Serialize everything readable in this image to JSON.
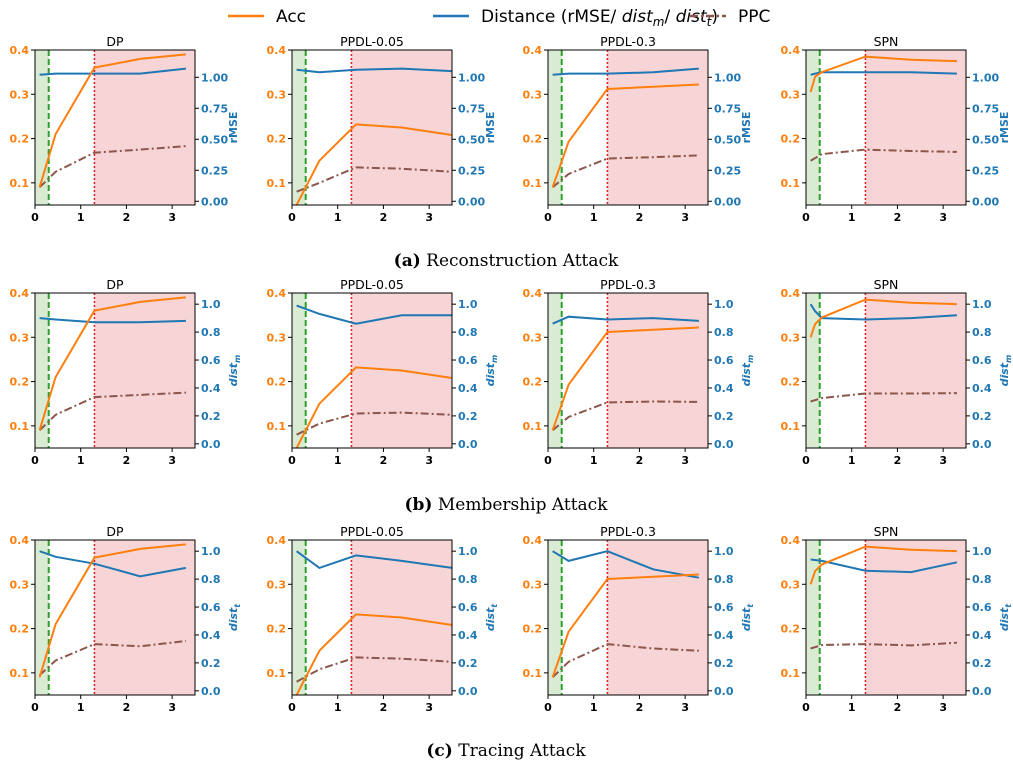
{
  "legend": [
    {
      "label": "Acc",
      "color": "#ff7f0e",
      "dash": "solid"
    },
    {
      "label_parts": [
        "Distance (rMSE/ ",
        "dist",
        "m",
        "/ ",
        "dist",
        "t",
        ")"
      ],
      "color": "#1f77b4",
      "dash": "solid"
    },
    {
      "label": "PPC",
      "color": "#8c564b",
      "dash": "dashdot"
    }
  ],
  "colors": {
    "acc": "#ff7f0e",
    "distance": "#1f77b4",
    "ppc": "#8c564b",
    "green_region": "#d9ecd3",
    "red_region": "#f7d4d6",
    "green_line": "#2ca02c",
    "red_line": "#d62728"
  },
  "chart_data": [
    {
      "row_caption": {
        "label": "(a)",
        "text": "Reconstruction Attack"
      },
      "right_ylabel": {
        "base": "rMSE",
        "sub": ""
      },
      "right_ticks": [
        "0.00",
        "0.25",
        "0.50",
        "0.75",
        "1.00"
      ],
      "right_ylim": [
        -0.03,
        1.22
      ],
      "panels": [
        {
          "type": "line",
          "title": "DP",
          "xlim": [
            0,
            3.5
          ],
          "ylim": [
            0.05,
            0.4
          ],
          "region_bounds": [
            0.3,
            1.3
          ],
          "acc": {
            "x": [
              0.1,
              0.45,
              1.3,
              2.3,
              3.3
            ],
            "y": [
              0.09,
              0.21,
              0.36,
              0.38,
              0.39
            ]
          },
          "ppc": {
            "x": [
              0.1,
              0.45,
              1.3,
              2.3,
              3.3
            ],
            "y": [
              0.09,
              0.125,
              0.168,
              0.175,
              0.183
            ]
          },
          "distance": {
            "x": [
              0.1,
              0.45,
              1.3,
              2.3,
              3.3
            ],
            "y": [
              1.02,
              1.03,
              1.03,
              1.03,
              1.07
            ]
          }
        },
        {
          "type": "line",
          "title": "PPDL-0.05",
          "xlim": [
            0,
            3.5
          ],
          "ylim": [
            0.05,
            0.4
          ],
          "region_bounds": [
            0.3,
            1.3
          ],
          "acc": {
            "x": [
              0.1,
              0.6,
              1.4,
              2.4,
              3.5
            ],
            "y": [
              0.05,
              0.15,
              0.232,
              0.225,
              0.208
            ]
          },
          "ppc": {
            "x": [
              0.1,
              0.6,
              1.4,
              2.4,
              3.5
            ],
            "y": [
              0.08,
              0.1,
              0.135,
              0.132,
              0.125
            ]
          },
          "distance": {
            "x": [
              0.1,
              0.6,
              1.4,
              2.4,
              3.5
            ],
            "y": [
              1.06,
              1.04,
              1.06,
              1.07,
              1.05
            ]
          }
        },
        {
          "type": "line",
          "title": "PPDL-0.3",
          "xlim": [
            0,
            3.5
          ],
          "ylim": [
            0.05,
            0.4
          ],
          "region_bounds": [
            0.3,
            1.3
          ],
          "acc": {
            "x": [
              0.1,
              0.45,
              1.3,
              2.3,
              3.3
            ],
            "y": [
              0.09,
              0.193,
              0.312,
              0.317,
              0.322
            ]
          },
          "ppc": {
            "x": [
              0.1,
              0.45,
              1.3,
              2.3,
              3.3
            ],
            "y": [
              0.09,
              0.12,
              0.155,
              0.158,
              0.162
            ]
          },
          "distance": {
            "x": [
              0.1,
              0.45,
              1.3,
              2.3,
              3.3
            ],
            "y": [
              1.02,
              1.03,
              1.03,
              1.04,
              1.07
            ]
          }
        },
        {
          "type": "line",
          "title": "SPN",
          "xlim": [
            0,
            3.5
          ],
          "ylim": [
            0.05,
            0.4
          ],
          "region_bounds": [
            0.3,
            1.3
          ],
          "acc": {
            "x": [
              0.1,
              0.2,
              0.35,
              1.3,
              2.3,
              3.3
            ],
            "y": [
              0.305,
              0.34,
              0.35,
              0.385,
              0.378,
              0.375
            ]
          },
          "ppc": {
            "x": [
              0.1,
              0.35,
              1.3,
              2.3,
              3.3
            ],
            "y": [
              0.15,
              0.165,
              0.175,
              0.172,
              0.17
            ]
          },
          "distance": {
            "x": [
              0.1,
              0.2,
              0.35,
              1.3,
              2.3,
              3.3
            ],
            "y": [
              1.02,
              1.03,
              1.04,
              1.04,
              1.04,
              1.03
            ]
          }
        }
      ]
    },
    {
      "row_caption": {
        "label": "(b)",
        "text": "Membership Attack"
      },
      "right_ylabel": {
        "base": "dist",
        "sub": "m"
      },
      "right_ticks": [
        "0.0",
        "0.2",
        "0.4",
        "0.6",
        "0.8",
        "1.0"
      ],
      "right_ylim": [
        -0.03,
        1.08
      ],
      "panels": [
        {
          "type": "line",
          "title": "DP",
          "xlim": [
            0,
            3.5
          ],
          "ylim": [
            0.05,
            0.4
          ],
          "region_bounds": [
            0.3,
            1.3
          ],
          "acc": {
            "x": [
              0.1,
              0.45,
              1.3,
              2.3,
              3.3
            ],
            "y": [
              0.09,
              0.21,
              0.36,
              0.38,
              0.39
            ]
          },
          "ppc": {
            "x": [
              0.1,
              0.45,
              1.3,
              2.3,
              3.3
            ],
            "y": [
              0.09,
              0.125,
              0.165,
              0.17,
              0.175
            ]
          },
          "distance": {
            "x": [
              0.1,
              0.45,
              1.3,
              2.3,
              3.3
            ],
            "y": [
              0.9,
              0.89,
              0.87,
              0.87,
              0.88
            ]
          }
        },
        {
          "type": "line",
          "title": "PPDL-0.05",
          "xlim": [
            0,
            3.5
          ],
          "ylim": [
            0.05,
            0.4
          ],
          "region_bounds": [
            0.3,
            1.3
          ],
          "acc": {
            "x": [
              0.1,
              0.6,
              1.4,
              2.4,
              3.5
            ],
            "y": [
              0.05,
              0.15,
              0.232,
              0.225,
              0.208
            ]
          },
          "ppc": {
            "x": [
              0.1,
              0.6,
              1.4,
              2.4,
              3.5
            ],
            "y": [
              0.08,
              0.105,
              0.128,
              0.13,
              0.125
            ]
          },
          "distance": {
            "x": [
              0.1,
              0.6,
              1.4,
              2.4,
              3.5
            ],
            "y": [
              0.99,
              0.93,
              0.86,
              0.92,
              0.92
            ]
          }
        },
        {
          "type": "line",
          "title": "PPDL-0.3",
          "xlim": [
            0,
            3.5
          ],
          "ylim": [
            0.05,
            0.4
          ],
          "region_bounds": [
            0.3,
            1.3
          ],
          "acc": {
            "x": [
              0.1,
              0.45,
              1.3,
              2.3,
              3.3
            ],
            "y": [
              0.09,
              0.193,
              0.312,
              0.317,
              0.322
            ]
          },
          "ppc": {
            "x": [
              0.1,
              0.45,
              1.3,
              2.3,
              3.3
            ],
            "y": [
              0.09,
              0.12,
              0.153,
              0.155,
              0.154
            ]
          },
          "distance": {
            "x": [
              0.1,
              0.45,
              1.3,
              2.3,
              3.3
            ],
            "y": [
              0.86,
              0.91,
              0.89,
              0.9,
              0.88
            ]
          }
        },
        {
          "type": "line",
          "title": "SPN",
          "xlim": [
            0,
            3.5
          ],
          "ylim": [
            0.05,
            0.4
          ],
          "region_bounds": [
            0.3,
            1.3
          ],
          "acc": {
            "x": [
              0.1,
              0.2,
              0.35,
              1.3,
              2.3,
              3.3
            ],
            "y": [
              0.3,
              0.33,
              0.345,
              0.385,
              0.378,
              0.375
            ]
          },
          "ppc": {
            "x": [
              0.1,
              0.35,
              1.3,
              2.3,
              3.3
            ],
            "y": [
              0.155,
              0.163,
              0.173,
              0.173,
              0.174
            ]
          },
          "distance": {
            "x": [
              0.1,
              0.2,
              0.35,
              1.3,
              2.3,
              3.3
            ],
            "y": [
              1.0,
              0.95,
              0.9,
              0.89,
              0.9,
              0.92
            ]
          }
        }
      ]
    },
    {
      "row_caption": {
        "label": "(c)",
        "text": "Tracing Attack"
      },
      "right_ylabel": {
        "base": "dist",
        "sub": "t"
      },
      "right_ticks": [
        "0.0",
        "0.2",
        "0.4",
        "0.6",
        "0.8",
        "1.0"
      ],
      "right_ylim": [
        -0.03,
        1.08
      ],
      "panels": [
        {
          "type": "line",
          "title": "DP",
          "xlim": [
            0,
            3.5
          ],
          "ylim": [
            0.05,
            0.4
          ],
          "region_bounds": [
            0.3,
            1.3
          ],
          "acc": {
            "x": [
              0.1,
              0.45,
              1.3,
              2.3,
              3.3
            ],
            "y": [
              0.09,
              0.21,
              0.36,
              0.38,
              0.39
            ]
          },
          "ppc": {
            "x": [
              0.1,
              0.45,
              1.3,
              2.3,
              3.3
            ],
            "y": [
              0.095,
              0.128,
              0.165,
              0.16,
              0.172
            ]
          },
          "distance": {
            "x": [
              0.1,
              0.45,
              1.3,
              2.3,
              3.3
            ],
            "y": [
              1.0,
              0.96,
              0.91,
              0.82,
              0.88
            ]
          }
        },
        {
          "type": "line",
          "title": "PPDL-0.05",
          "xlim": [
            0,
            3.5
          ],
          "ylim": [
            0.05,
            0.4
          ],
          "region_bounds": [
            0.3,
            1.3
          ],
          "acc": {
            "x": [
              0.1,
              0.6,
              1.4,
              2.4,
              3.5
            ],
            "y": [
              0.05,
              0.15,
              0.232,
              0.225,
              0.208
            ]
          },
          "ppc": {
            "x": [
              0.1,
              0.6,
              1.4,
              2.4,
              3.5
            ],
            "y": [
              0.08,
              0.108,
              0.135,
              0.132,
              0.125
            ]
          },
          "distance": {
            "x": [
              0.1,
              0.6,
              1.4,
              2.4,
              3.5
            ],
            "y": [
              1.0,
              0.88,
              0.97,
              0.93,
              0.88
            ]
          }
        },
        {
          "type": "line",
          "title": "PPDL-0.3",
          "xlim": [
            0,
            3.5
          ],
          "ylim": [
            0.05,
            0.4
          ],
          "region_bounds": [
            0.3,
            1.3
          ],
          "acc": {
            "x": [
              0.1,
              0.45,
              1.3,
              2.3,
              3.3
            ],
            "y": [
              0.09,
              0.193,
              0.312,
              0.317,
              0.322
            ]
          },
          "ppc": {
            "x": [
              0.1,
              0.45,
              1.3,
              2.3,
              3.3
            ],
            "y": [
              0.09,
              0.125,
              0.165,
              0.155,
              0.15
            ]
          },
          "distance": {
            "x": [
              0.1,
              0.45,
              1.3,
              2.3,
              3.3
            ],
            "y": [
              1.0,
              0.93,
              1.0,
              0.87,
              0.81
            ]
          }
        },
        {
          "type": "line",
          "title": "SPN",
          "xlim": [
            0,
            3.5
          ],
          "ylim": [
            0.05,
            0.4
          ],
          "region_bounds": [
            0.3,
            1.3
          ],
          "acc": {
            "x": [
              0.1,
              0.2,
              0.35,
              1.3,
              2.3,
              3.3
            ],
            "y": [
              0.3,
              0.33,
              0.345,
              0.385,
              0.378,
              0.375
            ]
          },
          "ppc": {
            "x": [
              0.1,
              0.35,
              1.3,
              2.3,
              3.3
            ],
            "y": [
              0.155,
              0.163,
              0.165,
              0.162,
              0.168
            ]
          },
          "distance": {
            "x": [
              0.1,
              0.35,
              1.3,
              2.3,
              3.3
            ],
            "y": [
              0.94,
              0.93,
              0.86,
              0.85,
              0.92
            ]
          }
        }
      ]
    }
  ],
  "x_ticks": [
    "0",
    "1",
    "2",
    "3"
  ],
  "left_ticks": [
    "0.1",
    "0.2",
    "0.3",
    "0.4"
  ]
}
